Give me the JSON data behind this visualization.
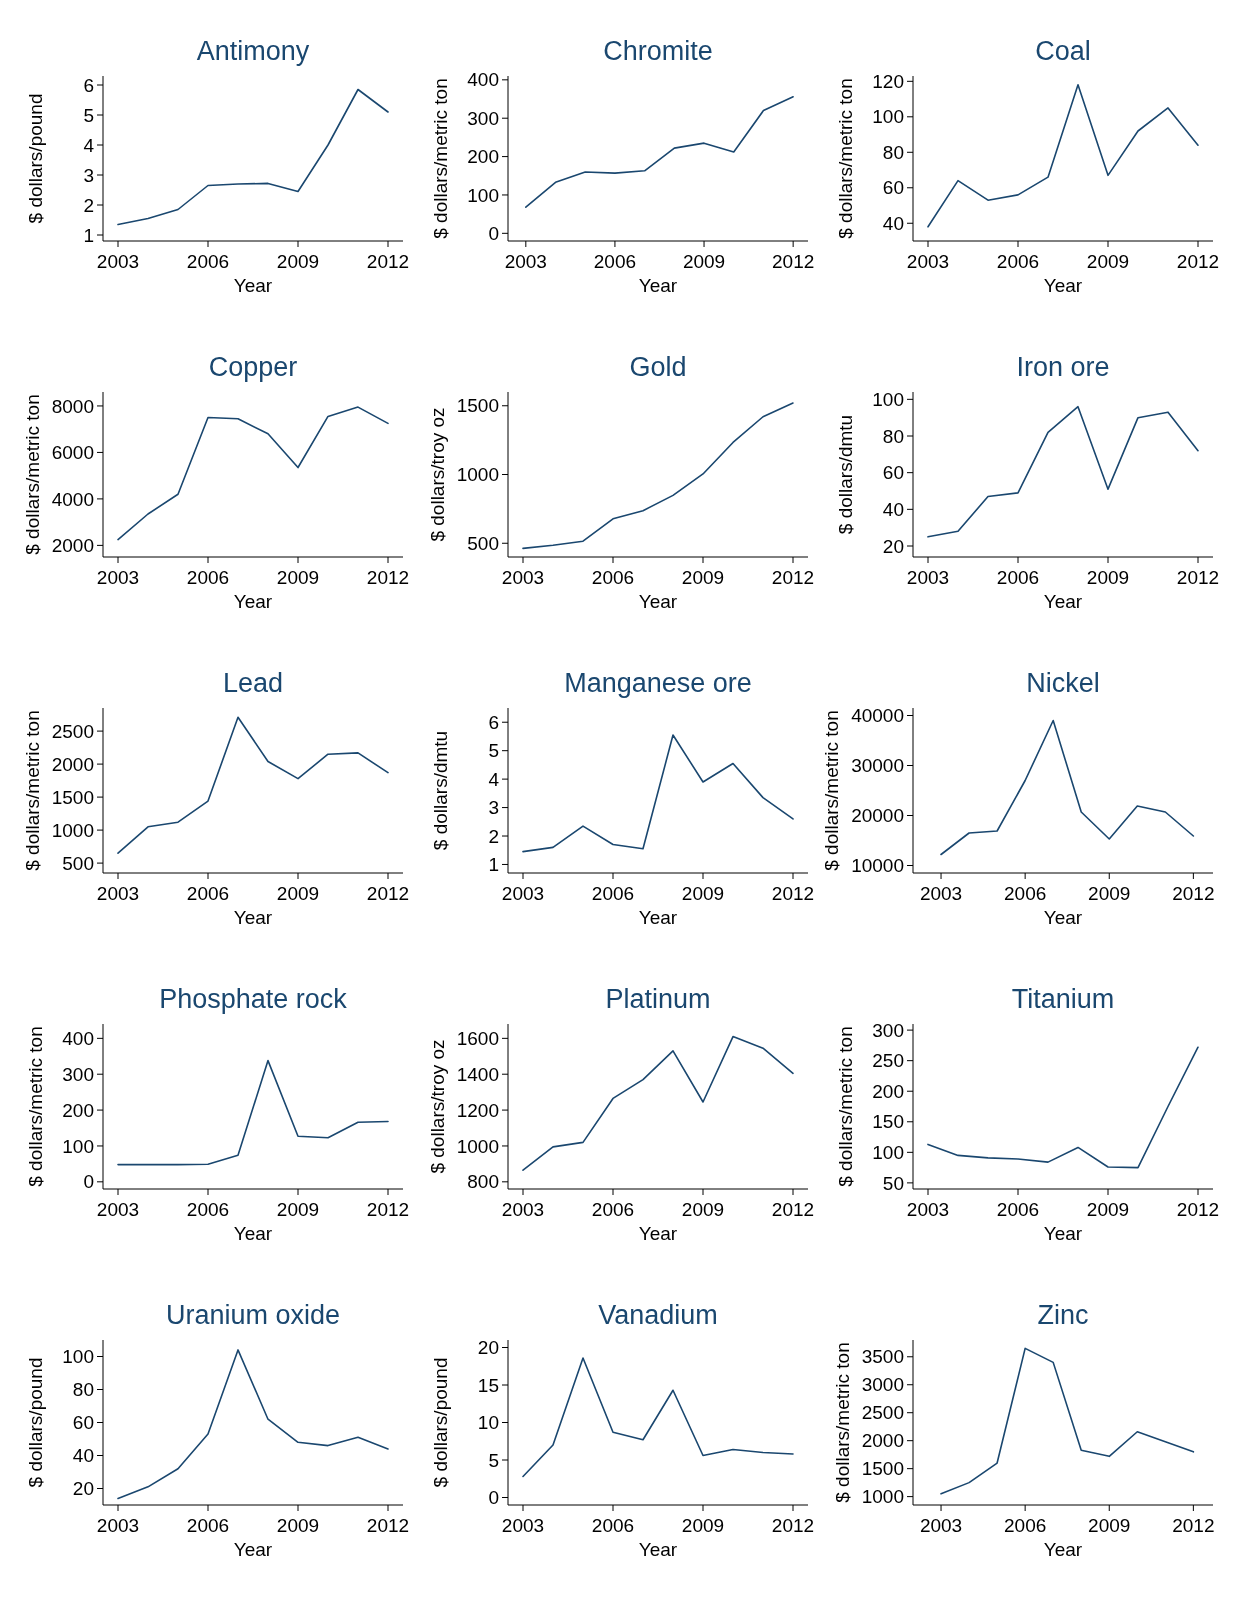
{
  "chart_data": [
    {
      "type": "line",
      "title": "Antimony",
      "xlabel": "Year",
      "ylabel": "$ dollars/pound",
      "x": [
        2003,
        2004,
        2005,
        2006,
        2007,
        2008,
        2009,
        2010,
        2011,
        2012
      ],
      "values": [
        1.35,
        1.55,
        1.85,
        2.65,
        2.7,
        2.72,
        2.45,
        4.0,
        5.85,
        5.1
      ],
      "color": "#1a476f",
      "xlim": [
        2002.5,
        2012.5
      ],
      "ylim": [
        0.8,
        6.3
      ],
      "xticks": [
        2003,
        2006,
        2009,
        2012
      ],
      "yticks": [
        1,
        2,
        3,
        4,
        5,
        6
      ]
    },
    {
      "type": "line",
      "title": "Chromite",
      "xlabel": "Year",
      "ylabel": "$ dollars/metric ton",
      "x": [
        2003,
        2004,
        2005,
        2006,
        2007,
        2008,
        2009,
        2010,
        2011,
        2012
      ],
      "values": [
        68,
        133,
        160,
        157,
        163,
        222,
        235,
        212,
        320,
        356
      ],
      "color": "#1a476f",
      "xlim": [
        2002.4,
        2012.5
      ],
      "ylim": [
        -20,
        410
      ],
      "xticks": [
        2003,
        2006,
        2009,
        2012
      ],
      "yticks": [
        0,
        100,
        200,
        300,
        400
      ]
    },
    {
      "type": "line",
      "title": "Coal",
      "xlabel": "Year",
      "ylabel": "$ dollars/metric ton",
      "x": [
        2003,
        2004,
        2005,
        2006,
        2007,
        2008,
        2009,
        2010,
        2011,
        2012
      ],
      "values": [
        38,
        64,
        53,
        56,
        66,
        118,
        67,
        92,
        105,
        84
      ],
      "color": "#1a476f",
      "xlim": [
        2002.5,
        2012.5
      ],
      "ylim": [
        30,
        123
      ],
      "xticks": [
        2003,
        2006,
        2009,
        2012
      ],
      "yticks": [
        40,
        60,
        80,
        100,
        120
      ]
    },
    {
      "type": "line",
      "title": "Copper",
      "xlabel": "Year",
      "ylabel": "$ dollars/metric ton",
      "x": [
        2003,
        2004,
        2005,
        2006,
        2007,
        2008,
        2009,
        2010,
        2011,
        2012
      ],
      "values": [
        2250,
        3350,
        4200,
        7500,
        7450,
        6800,
        5350,
        7550,
        7950,
        7250
      ],
      "color": "#1a476f",
      "xlim": [
        2002.5,
        2012.5
      ],
      "ylim": [
        1500,
        8600
      ],
      "xticks": [
        2003,
        2006,
        2009,
        2012
      ],
      "yticks": [
        2000,
        4000,
        6000,
        8000
      ]
    },
    {
      "type": "line",
      "title": "Gold",
      "xlabel": "Year",
      "ylabel": "$ dollars/troy oz",
      "x": [
        2003,
        2004,
        2005,
        2006,
        2007,
        2008,
        2009,
        2010,
        2011,
        2012
      ],
      "values": [
        463,
        485,
        515,
        678,
        737,
        848,
        1004,
        1233,
        1420,
        1520
      ],
      "color": "#1a476f",
      "xlim": [
        2002.5,
        2012.5
      ],
      "ylim": [
        400,
        1600
      ],
      "xticks": [
        2003,
        2006,
        2009,
        2012
      ],
      "yticks": [
        500,
        1000,
        1500
      ]
    },
    {
      "type": "line",
      "title": "Iron ore",
      "xlabel": "Year",
      "ylabel": "$ dollars/dmtu",
      "x": [
        2003,
        2004,
        2005,
        2006,
        2007,
        2008,
        2009,
        2010,
        2011,
        2012
      ],
      "values": [
        25,
        28,
        47,
        49,
        82,
        96,
        51,
        90,
        93,
        72
      ],
      "color": "#1a476f",
      "xlim": [
        2002.5,
        2012.5
      ],
      "ylim": [
        14,
        104
      ],
      "xticks": [
        2003,
        2006,
        2009,
        2012
      ],
      "yticks": [
        20,
        40,
        60,
        80,
        100
      ]
    },
    {
      "type": "line",
      "title": "Lead",
      "xlabel": "Year",
      "ylabel": "$ dollars/metric ton",
      "x": [
        2003,
        2004,
        2005,
        2006,
        2007,
        2008,
        2009,
        2010,
        2011,
        2012
      ],
      "values": [
        650,
        1050,
        1120,
        1440,
        2710,
        2040,
        1780,
        2150,
        2170,
        1870
      ],
      "color": "#1a476f",
      "xlim": [
        2002.5,
        2012.5
      ],
      "ylim": [
        350,
        2850
      ],
      "xticks": [
        2003,
        2006,
        2009,
        2012
      ],
      "yticks": [
        500,
        1000,
        1500,
        2000,
        2500
      ]
    },
    {
      "type": "line",
      "title": "Manganese ore",
      "xlabel": "Year",
      "ylabel": "$ dollars/dmtu",
      "x": [
        2003,
        2004,
        2005,
        2006,
        2007,
        2008,
        2009,
        2010,
        2011,
        2012
      ],
      "values": [
        1.45,
        1.6,
        2.35,
        1.7,
        1.55,
        5.55,
        3.9,
        4.55,
        3.35,
        2.6
      ],
      "color": "#1a476f",
      "xlim": [
        2002.5,
        2012.5
      ],
      "ylim": [
        0.7,
        6.5
      ],
      "xticks": [
        2003,
        2006,
        2009,
        2012
      ],
      "yticks": [
        1,
        2,
        3,
        4,
        5,
        6
      ]
    },
    {
      "type": "line",
      "title": "Nickel",
      "xlabel": "Year",
      "ylabel": "$ dollars/metric ton",
      "x": [
        2003,
        2004,
        2005,
        2006,
        2007,
        2008,
        2009,
        2010,
        2011,
        2012
      ],
      "values": [
        12200,
        16500,
        16900,
        27000,
        39000,
        20700,
        15300,
        21900,
        20700,
        15900
      ],
      "color": "#1a476f",
      "xlim": [
        2002,
        2012.7
      ],
      "ylim": [
        8500,
        41500
      ],
      "xticks": [
        2003,
        2006,
        2009,
        2012
      ],
      "yticks": [
        10000,
        20000,
        30000,
        40000
      ]
    },
    {
      "type": "line",
      "title": "Phosphate rock",
      "xlabel": "Year",
      "ylabel": "$ dollars/metric ton",
      "x": [
        2003,
        2004,
        2005,
        2006,
        2007,
        2008,
        2009,
        2010,
        2011,
        2012
      ],
      "values": [
        48,
        48,
        48,
        49,
        74,
        338,
        127,
        123,
        166,
        168
      ],
      "color": "#1a476f",
      "xlim": [
        2002.5,
        2012.5
      ],
      "ylim": [
        -20,
        440
      ],
      "xticks": [
        2003,
        2006,
        2009,
        2012
      ],
      "yticks": [
        0,
        100,
        200,
        300,
        400
      ]
    },
    {
      "type": "line",
      "title": "Platinum",
      "xlabel": "Year",
      "ylabel": "$ dollars/troy oz",
      "x": [
        2003,
        2004,
        2005,
        2006,
        2007,
        2008,
        2009,
        2010,
        2011,
        2012
      ],
      "values": [
        865,
        995,
        1020,
        1265,
        1370,
        1530,
        1245,
        1610,
        1545,
        1405
      ],
      "color": "#1a476f",
      "xlim": [
        2002.5,
        2012.5
      ],
      "ylim": [
        760,
        1680
      ],
      "xticks": [
        2003,
        2006,
        2009,
        2012
      ],
      "yticks": [
        800,
        1000,
        1200,
        1400,
        1600
      ]
    },
    {
      "type": "line",
      "title": "Titanium",
      "xlabel": "Year",
      "ylabel": "$ dollars/metric ton",
      "x": [
        2003,
        2004,
        2005,
        2006,
        2007,
        2008,
        2009,
        2010,
        2011,
        2012
      ],
      "values": [
        113,
        95,
        91,
        89,
        84,
        108,
        76,
        75,
        175,
        272
      ],
      "color": "#1a476f",
      "xlim": [
        2002.5,
        2012.5
      ],
      "ylim": [
        40,
        310
      ],
      "xticks": [
        2003,
        2006,
        2009,
        2012
      ],
      "yticks": [
        50,
        100,
        150,
        200,
        250,
        300
      ]
    },
    {
      "type": "line",
      "title": "Uranium oxide",
      "xlabel": "Year",
      "ylabel": "$ dollars/pound",
      "x": [
        2003,
        2004,
        2005,
        2006,
        2007,
        2008,
        2009,
        2010,
        2011,
        2012
      ],
      "values": [
        14,
        21,
        32,
        53,
        104,
        62,
        48,
        46,
        51,
        44
      ],
      "color": "#1a476f",
      "xlim": [
        2002.5,
        2012.5
      ],
      "ylim": [
        10,
        110
      ],
      "xticks": [
        2003,
        2006,
        2009,
        2012
      ],
      "yticks": [
        20,
        40,
        60,
        80,
        100
      ]
    },
    {
      "type": "line",
      "title": "Vanadium",
      "xlabel": "Year",
      "ylabel": "$ dollars/pound",
      "x": [
        2003,
        2004,
        2005,
        2006,
        2007,
        2008,
        2009,
        2010,
        2011,
        2012
      ],
      "values": [
        2.8,
        7.0,
        18.6,
        8.7,
        7.7,
        14.3,
        5.6,
        6.4,
        6.0,
        5.8
      ],
      "color": "#1a476f",
      "xlim": [
        2002.5,
        2012.5
      ],
      "ylim": [
        -1,
        21
      ],
      "xticks": [
        2003,
        2006,
        2009,
        2012
      ],
      "yticks": [
        0,
        5,
        10,
        15,
        20
      ]
    },
    {
      "type": "line",
      "title": "Zinc",
      "xlabel": "Year",
      "ylabel": "$ dollars/metric ton",
      "x": [
        2003,
        2004,
        2005,
        2006,
        2007,
        2008,
        2009,
        2010,
        2011,
        2012
      ],
      "values": [
        1050,
        1250,
        1600,
        3650,
        3400,
        1830,
        1720,
        2160,
        1980,
        1800
      ],
      "color": "#1a476f",
      "xlim": [
        2002,
        2012.7
      ],
      "ylim": [
        850,
        3800
      ],
      "xticks": [
        2003,
        2006,
        2009,
        2012
      ],
      "yticks": [
        1000,
        1500,
        2000,
        2500,
        3000,
        3500
      ]
    }
  ]
}
